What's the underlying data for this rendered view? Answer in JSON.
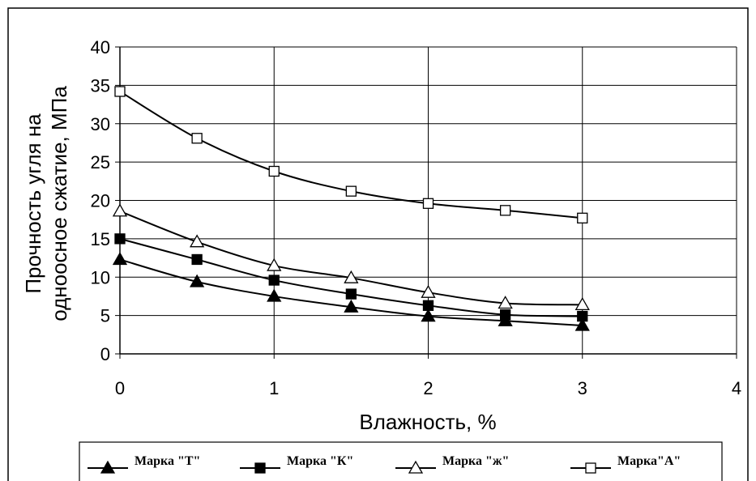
{
  "chart_data": {
    "type": "line",
    "xlabel": "Влажность, %",
    "ylabel": [
      "Прочность угля на",
      "одноосное сжатие, МПа"
    ],
    "xlim": [
      0,
      4
    ],
    "ylim": [
      0,
      40
    ],
    "x_ticks": [
      "0",
      "1",
      "2",
      "3",
      "4"
    ],
    "y_ticks": [
      "0",
      "5",
      "10",
      "15",
      "20",
      "25",
      "30",
      "35",
      "40"
    ],
    "grid": true,
    "legend_position": "bottom",
    "series": [
      {
        "name": "Марка \"Т\"",
        "marker": "filled-triangle",
        "color": "#000000",
        "x": [
          0,
          0.5,
          1,
          1.5,
          2,
          2.5,
          3
        ],
        "y": [
          12.3,
          9.4,
          7.5,
          6.1,
          4.9,
          4.3,
          3.7
        ]
      },
      {
        "name": "Марка \"К\"",
        "marker": "filled-square",
        "color": "#000000",
        "x": [
          0,
          0.5,
          1,
          1.5,
          2,
          2.5,
          3
        ],
        "y": [
          15.0,
          12.3,
          9.6,
          7.8,
          6.3,
          5.1,
          4.9
        ]
      },
      {
        "name": "Марка \"ж\"",
        "marker": "open-triangle",
        "color": "#000000",
        "x": [
          0,
          0.5,
          1,
          1.5,
          2,
          2.5,
          3
        ],
        "y": [
          18.6,
          14.6,
          11.5,
          9.9,
          8.0,
          6.6,
          6.4
        ]
      },
      {
        "name": "Марка\"А\"",
        "marker": "open-square",
        "color": "#000000",
        "x": [
          0,
          0.5,
          1,
          1.5,
          2,
          2.5,
          3
        ],
        "y": [
          34.2,
          28.1,
          23.8,
          21.2,
          19.6,
          18.7,
          17.7
        ]
      }
    ]
  }
}
